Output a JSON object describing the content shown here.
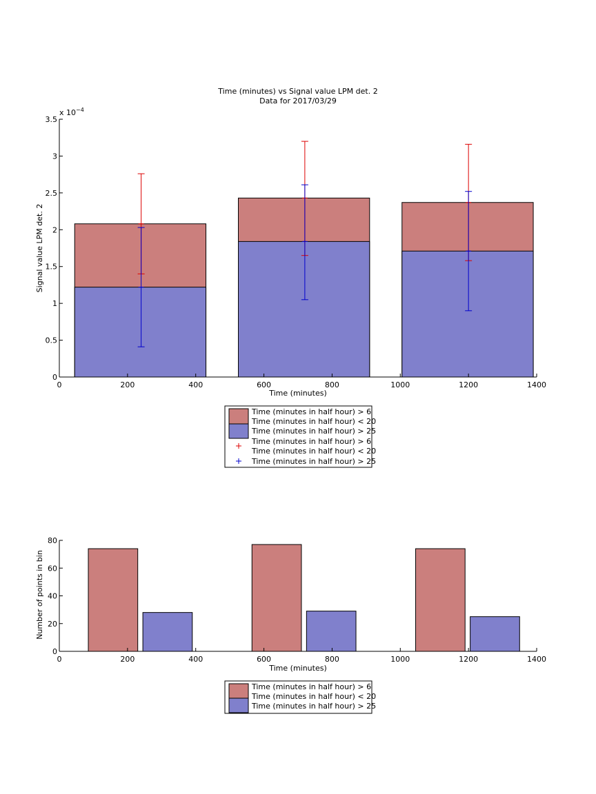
{
  "colors": {
    "red_fill": "#CB7F7D",
    "blue_fill": "#8080CC",
    "red_err": "#DD0000",
    "blue_err": "#0000CC"
  },
  "chart_data": [
    {
      "type": "bar",
      "title": "Time (minutes) vs Signal value LPM det. 2",
      "subtitle": "Data for 2017/03/29",
      "xlabel": "Time (minutes)",
      "ylabel": "Signal value LPM det. 2",
      "exponent_prefix": "x 10",
      "exponent_sup": "−4",
      "xlim": [
        0,
        1400
      ],
      "ylim": [
        0,
        3.5
      ],
      "xticks": [
        "0",
        "200",
        "400",
        "600",
        "800",
        "1000",
        "1200",
        "1400"
      ],
      "yticks": [
        "0",
        "0.5",
        "1",
        "1.5",
        "2",
        "2.5",
        "3",
        "3.5"
      ],
      "bars": [
        {
          "x0": 45,
          "x1": 430,
          "red": 2.08,
          "blue": 1.22
        },
        {
          "x0": 525,
          "x1": 910,
          "red": 2.43,
          "blue": 1.84
        },
        {
          "x0": 1005,
          "x1": 1390,
          "red": 2.37,
          "blue": 1.71
        }
      ],
      "errorbars": {
        "red": [
          {
            "x": 240,
            "y": 2.08,
            "lo": 1.4,
            "hi": 2.76
          },
          {
            "x": 720,
            "y": 2.43,
            "lo": 1.65,
            "hi": 3.2
          },
          {
            "x": 1200,
            "y": 2.37,
            "lo": 1.58,
            "hi": 3.16
          }
        ],
        "blue": [
          {
            "x": 240,
            "y": 1.22,
            "lo": 0.41,
            "hi": 2.03
          },
          {
            "x": 720,
            "y": 1.84,
            "lo": 1.05,
            "hi": 2.61
          },
          {
            "x": 1200,
            "y": 1.71,
            "lo": 0.9,
            "hi": 2.52
          }
        ]
      },
      "legend": {
        "red_bar": [
          "Time (minutes in half hour) > 6",
          "Time (minutes in half hour) < 20"
        ],
        "blue_bar": [
          "Time (minutes in half hour) > 25"
        ],
        "red_err": [
          "Time (minutes in half hour) > 6",
          "Time (minutes in half hour) < 20"
        ],
        "blue_err": [
          "Time (minutes in half hour) > 25"
        ]
      }
    },
    {
      "type": "bar",
      "xlabel": "Time (minutes)",
      "ylabel": "Number of points in bin",
      "xlim": [
        0,
        1400
      ],
      "ylim": [
        0,
        80
      ],
      "xticks": [
        "0",
        "200",
        "400",
        "600",
        "800",
        "1000",
        "1200",
        "1400"
      ],
      "yticks": [
        "0",
        "20",
        "40",
        "60",
        "80"
      ],
      "bars": [
        {
          "series": "red",
          "x0": 85,
          "x1": 230,
          "value": 74
        },
        {
          "series": "blue",
          "x0": 245,
          "x1": 390,
          "value": 28
        },
        {
          "series": "red",
          "x0": 565,
          "x1": 710,
          "value": 77
        },
        {
          "series": "blue",
          "x0": 725,
          "x1": 870,
          "value": 29
        },
        {
          "series": "red",
          "x0": 1045,
          "x1": 1190,
          "value": 74
        },
        {
          "series": "blue",
          "x0": 1205,
          "x1": 1350,
          "value": 25
        }
      ],
      "legend": {
        "red_bar": [
          "Time (minutes in half hour) > 6",
          "Time (minutes in half hour) < 20"
        ],
        "blue_bar": [
          "Time (minutes in half hour) > 25"
        ]
      }
    }
  ]
}
